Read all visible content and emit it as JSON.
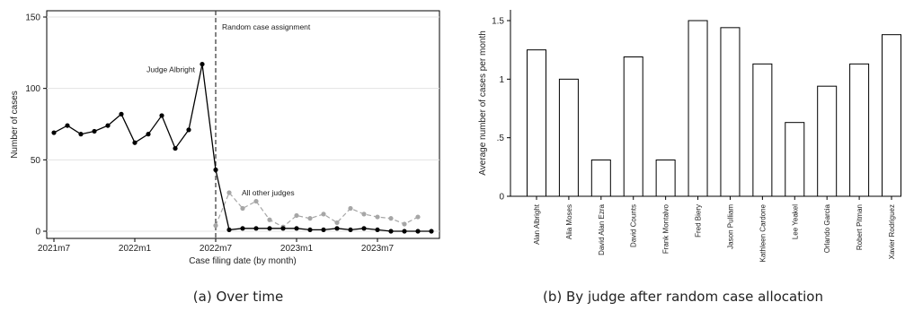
{
  "chart_data": [
    {
      "type": "line",
      "caption": "(a) Over time",
      "xlabel": "Case filing date (by month)",
      "ylabel": "Number of cases",
      "x_ticks": [
        "2021m7",
        "2022m1",
        "2022m7",
        "2023m1",
        "2023m7"
      ],
      "y_ticks": [
        "0",
        "50",
        "100",
        "150"
      ],
      "ylim": [
        0,
        150
      ],
      "grid": true,
      "marker_line": {
        "x": "2022m7",
        "label": "Random case assignment"
      },
      "annotations": [
        {
          "text": "Judge Albright",
          "near": "2022m6"
        },
        {
          "text": "All other judges",
          "near": "2022m8"
        }
      ],
      "x": [
        "2021m7",
        "2021m8",
        "2021m9",
        "2021m10",
        "2021m11",
        "2021m12",
        "2022m1",
        "2022m2",
        "2022m3",
        "2022m4",
        "2022m5",
        "2022m6",
        "2022m7",
        "2022m8",
        "2022m9",
        "2022m10",
        "2022m11",
        "2022m12",
        "2023m1",
        "2023m2",
        "2023m3",
        "2023m4",
        "2023m5",
        "2023m6",
        "2023m7",
        "2023m8",
        "2023m9",
        "2023m10",
        "2023m11"
      ],
      "series": [
        {
          "name": "Judge Albright",
          "color": "#000000",
          "values": [
            69,
            74,
            68,
            70,
            74,
            82,
            62,
            68,
            81,
            58,
            71,
            117,
            43,
            1,
            2,
            2,
            2,
            2,
            2,
            1,
            1,
            2,
            1,
            2,
            1,
            0,
            0,
            0,
            0
          ]
        },
        {
          "name": "All other judges",
          "color": "#a6a6a6",
          "values": [
            null,
            null,
            null,
            null,
            null,
            null,
            null,
            null,
            null,
            null,
            null,
            null,
            4,
            27,
            16,
            21,
            8,
            3,
            11,
            9,
            12,
            6,
            16,
            12,
            10,
            9,
            5,
            10,
            null
          ]
        }
      ]
    },
    {
      "type": "bar",
      "caption": "(b) By judge after random case allocation",
      "xlabel": "",
      "ylabel": "Average number of cases per month",
      "y_ticks": [
        "0",
        ".5",
        "1",
        "1.5"
      ],
      "ylim": [
        0,
        1.6
      ],
      "grid": false,
      "categories": [
        "Alan Albright",
        "Alia Moses",
        "David Alan Ezra",
        "David Counts",
        "Frank Montalvo",
        "Fred Biery",
        "Jason Pulliam",
        "Kathleen Cardone",
        "Lee Yeakel",
        "Orlando Garcia",
        "Robert Pitman",
        "Xavier Rodriguez"
      ],
      "values": [
        1.25,
        1.0,
        0.31,
        1.19,
        0.31,
        1.5,
        1.44,
        1.13,
        0.63,
        0.94,
        1.13,
        1.38
      ]
    }
  ]
}
